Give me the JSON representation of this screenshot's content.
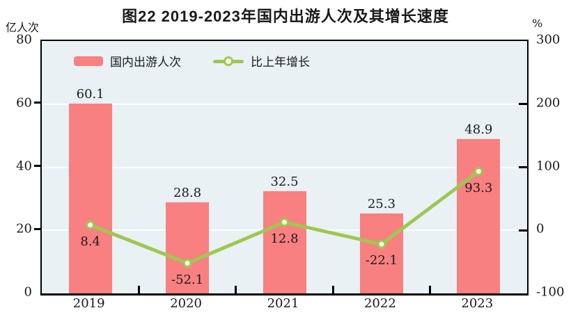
{
  "title": "图22  2019-2023年国内出游人次及其增长速度",
  "left_axis": {
    "unit_label": "亿人次",
    "tick_labels": [
      "80",
      "60",
      "40",
      "20",
      "0"
    ]
  },
  "right_axis": {
    "unit_label": "%",
    "tick_labels": [
      "300",
      "200",
      "100",
      "0",
      "-100"
    ]
  },
  "legend": {
    "items": [
      {
        "label": "国内出游人次",
        "type": "bar"
      },
      {
        "label": "比上年增长",
        "type": "line"
      }
    ]
  },
  "chart_data": {
    "type": "bar+line",
    "categories": [
      "2019",
      "2020",
      "2021",
      "2022",
      "2023"
    ],
    "series": [
      {
        "name": "国内出游人次",
        "type": "bar",
        "axis": "left",
        "unit": "亿人次",
        "values": [
          60.1,
          28.8,
          32.5,
          25.3,
          48.9
        ]
      },
      {
        "name": "比上年增长",
        "type": "line",
        "axis": "right",
        "unit": "%",
        "values": [
          8.4,
          -52.1,
          12.8,
          -22.1,
          93.3
        ]
      }
    ],
    "title": "图22  2019-2023年国内出游人次及其增长速度",
    "xlabel": "",
    "ylabel_left": "亿人次",
    "ylabel_right": "%",
    "left_ylim": [
      0,
      80
    ],
    "right_ylim": [
      -100,
      300
    ],
    "grid": true,
    "gridline_values_left": [
      20,
      40,
      60
    ],
    "legend_position": "top-left-inside",
    "value_labels_shown": true
  },
  "colors": {
    "bar": "#F98080",
    "line": "#9EC752",
    "marker_fill": "#FBFDEC",
    "plot_bg": "#E9F1F4",
    "gridline": "#FFFFFF",
    "axis": "#000000",
    "text": "#1A1A1A"
  }
}
